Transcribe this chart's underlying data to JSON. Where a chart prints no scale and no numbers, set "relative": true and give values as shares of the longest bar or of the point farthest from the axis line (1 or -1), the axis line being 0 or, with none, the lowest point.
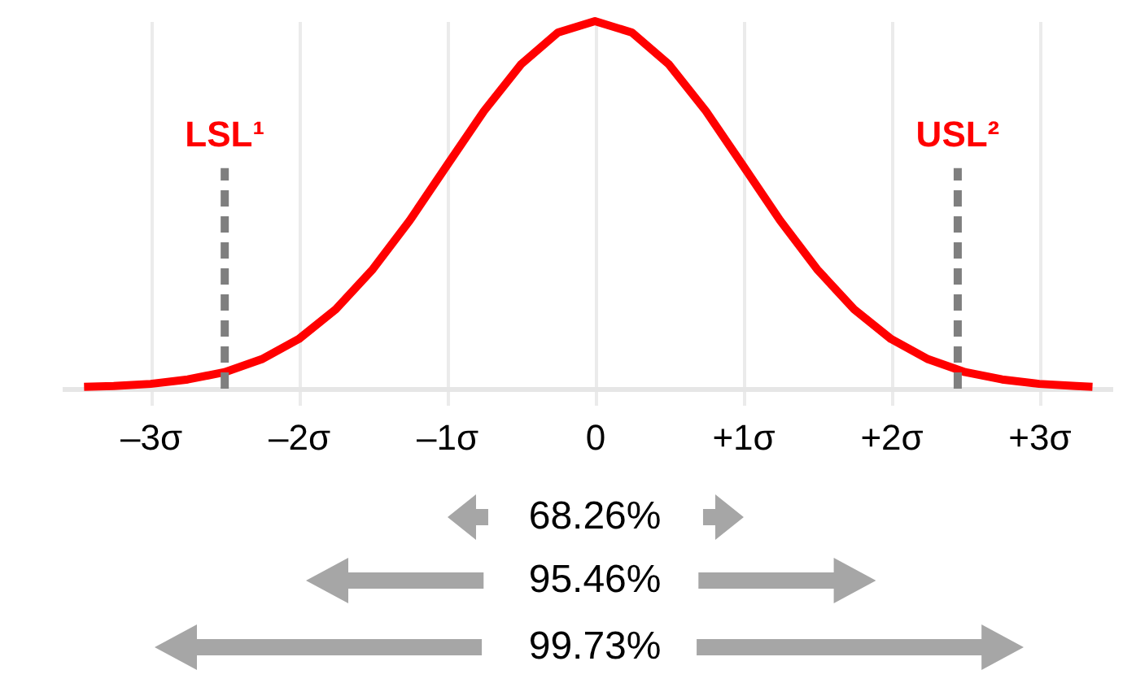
{
  "chart_data": {
    "type": "line",
    "relative": true,
    "x": [
      -3.45,
      -3.25,
      -3,
      -2.75,
      -2.5,
      -2.25,
      -2,
      -1.75,
      -1.5,
      -1.25,
      -1,
      -0.75,
      -0.5,
      -0.25,
      0,
      0.25,
      0.5,
      0.75,
      1,
      1.25,
      1.5,
      1.75,
      2,
      2.25,
      2.5,
      2.75,
      3,
      3.25,
      3.36
    ],
    "series": [
      {
        "color": "#ff0000",
        "values": [
          0.005,
          0.007,
          0.013,
          0.025,
          0.045,
          0.08,
          0.135,
          0.216,
          0.325,
          0.458,
          0.607,
          0.755,
          0.882,
          0.969,
          1,
          0.969,
          0.882,
          0.755,
          0.607,
          0.458,
          0.325,
          0.216,
          0.135,
          0.08,
          0.045,
          0.025,
          0.013,
          0.007,
          0.005
        ]
      }
    ],
    "xlim": [
      -3.6,
      3.5
    ],
    "xticks": [
      {
        "value": -3,
        "label": "–3σ"
      },
      {
        "value": -2,
        "label": "–2σ"
      },
      {
        "value": -1,
        "label": "–1σ"
      },
      0,
      {
        "value": 1,
        "label": "+1σ"
      },
      {
        "value": 2,
        "label": "+2σ"
      },
      {
        "value": 3,
        "label": "+3σ"
      }
    ],
    "grid": "x",
    "marker": "none",
    "line_style": "solid",
    "ref_lines": [
      {
        "axis": "x",
        "value": -2.5,
        "label": "LSL¹",
        "color": "#7f7f7f",
        "line_style": "dashed"
      },
      {
        "axis": "x",
        "value": 2.45,
        "label": "USL²",
        "color": "#7f7f7f",
        "line_style": "dashed"
      }
    ],
    "annotations": [
      "68.26%",
      "95.46%",
      "99.73%"
    ]
  }
}
